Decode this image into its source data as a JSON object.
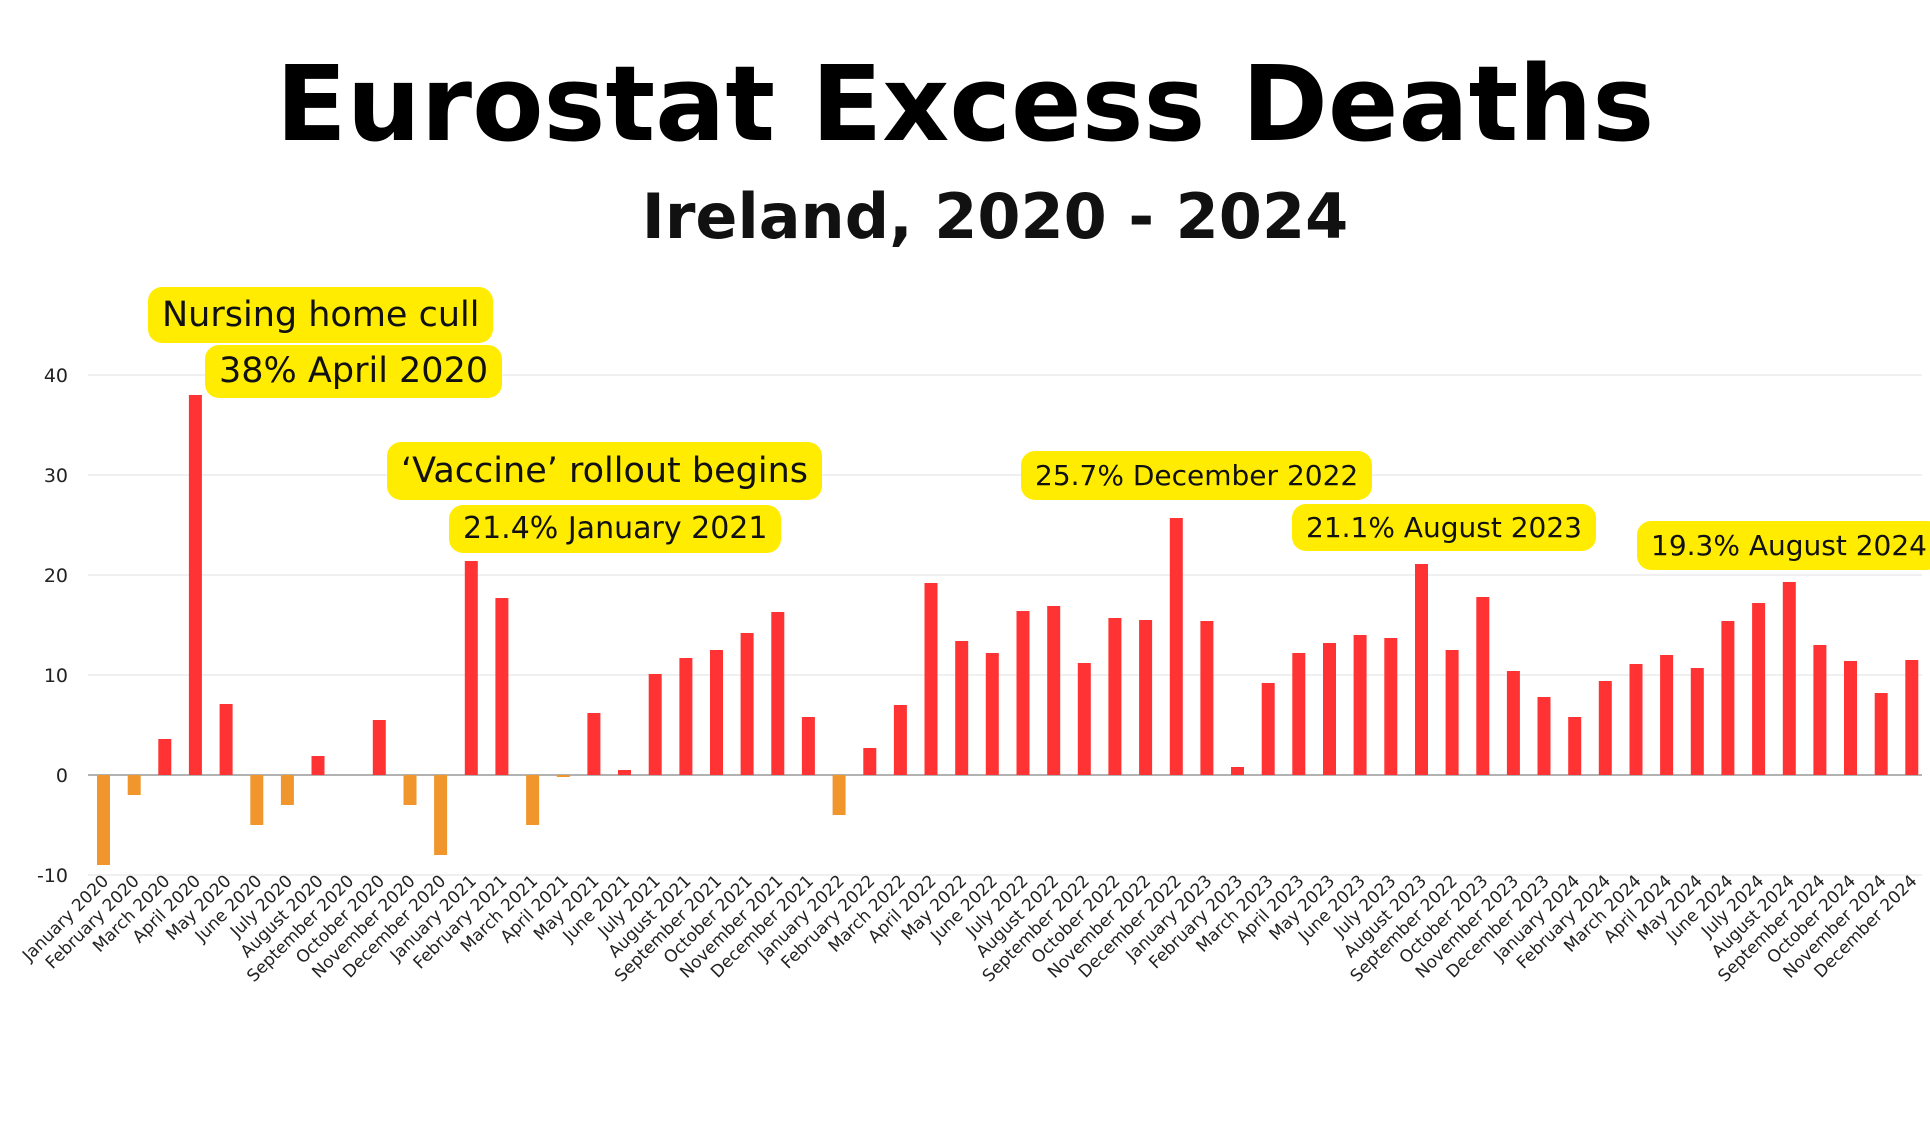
{
  "title": "Eurostat Excess Deaths",
  "subtitle": "Ireland, 2020 - 2024",
  "colors": {
    "positive": "#ff3333",
    "negative": "#f0962d",
    "highlight": "#ffec00",
    "grid": "#e2e2e2",
    "axis": "#999999"
  },
  "annotations": [
    {
      "text": "Nursing home cull"
    },
    {
      "text": "38% April 2020"
    },
    {
      "text": "‘Vaccine’ rollout begins"
    },
    {
      "text": "21.4% January 2021"
    },
    {
      "text": "25.7% December 2022"
    },
    {
      "text": "21.1% August 2023"
    },
    {
      "text": "19.3% August 2024"
    }
  ],
  "chart_data": {
    "type": "bar",
    "title": "Eurostat Excess Deaths",
    "subtitle": "Ireland, 2020 - 2024",
    "xlabel": "",
    "ylabel": "",
    "ylim": [
      -10,
      40
    ],
    "yticks": [
      -10,
      0,
      10,
      20,
      30,
      40
    ],
    "grid": true,
    "legend": "none",
    "categories": [
      "January 2020",
      "February 2020",
      "March 2020",
      "April 2020",
      "May 2020",
      "June 2020",
      "July 2020",
      "August 2020",
      "September 2020",
      "October 2020",
      "November 2020",
      "December 2020",
      "January 2021",
      "February 2021",
      "March 2021",
      "April 2021",
      "May 2021",
      "June 2021",
      "July 2021",
      "August 2021",
      "September 2021",
      "October 2021",
      "November 2021",
      "December 2021",
      "January 2022",
      "February 2022",
      "March 2022",
      "April 2022",
      "May 2022",
      "June 2022",
      "July 2022",
      "August 2022",
      "September 2022",
      "October 2022",
      "November 2022",
      "December 2022",
      "January 2023",
      "February 2023",
      "March 2023",
      "April 2023",
      "May 2023",
      "June 2023",
      "July 2023",
      "August 2023",
      "September 2022",
      "October 2023",
      "November 2023",
      "December 2023",
      "January 2024",
      "February 2024",
      "March 2024",
      "April 2024",
      "May 2024",
      "June 2024",
      "July 2024",
      "August 2024",
      "September 2024",
      "October 2024",
      "November 2024",
      "December 2024"
    ],
    "values": [
      -9.0,
      -2.0,
      3.6,
      38.0,
      7.1,
      -5.0,
      -3.0,
      1.9,
      0,
      5.5,
      -3.0,
      -8.0,
      21.4,
      17.7,
      -5.0,
      -0.1,
      6.2,
      0.5,
      10.1,
      11.7,
      12.5,
      14.2,
      16.3,
      5.8,
      -4.0,
      2.7,
      7.0,
      19.2,
      13.4,
      12.2,
      16.4,
      16.9,
      11.2,
      15.7,
      15.5,
      25.7,
      15.4,
      0.8,
      9.2,
      12.2,
      13.2,
      14.0,
      13.7,
      21.1,
      12.5,
      17.8,
      10.4,
      7.8,
      5.8,
      9.4,
      11.1,
      12.0,
      10.7,
      15.4,
      17.2,
      19.3,
      13.0,
      11.4,
      8.2,
      11.5
    ]
  }
}
